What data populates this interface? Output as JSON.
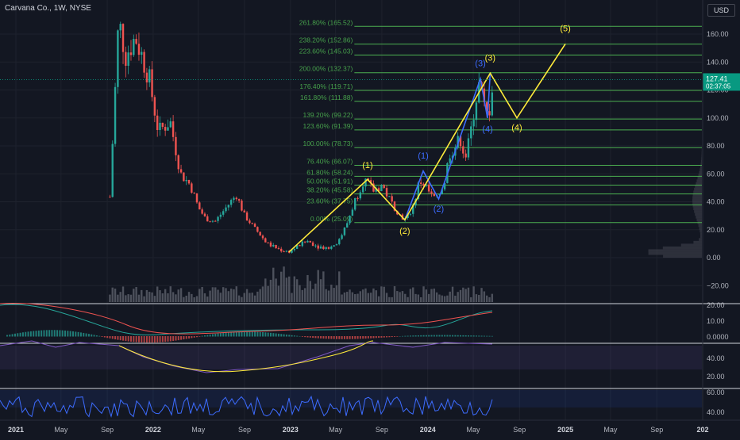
{
  "header": {
    "symbol": "Carvana Co., 1W, NYSE",
    "currency": "USD",
    "last_price": "127.41",
    "countdown": "02:37:05"
  },
  "colors": {
    "background": "#131722",
    "up": "#26a69a",
    "down": "#ef5350",
    "fib": "#4caf50",
    "wave_yellow": "#ffeb3b",
    "wave_blue": "#2962ff",
    "price_tag": "#089981"
  },
  "chart_data": {
    "type": "candlestick",
    "price_axis": {
      "ticks": [
        "160.00",
        "140.00",
        "120.00",
        "100.00",
        "80.00",
        "60.00",
        "40.00",
        "20.00",
        "0.00",
        "−20.00"
      ],
      "range": [
        -30,
        170
      ]
    },
    "time_axis": {
      "ticks": [
        "2021",
        "May",
        "Sep",
        "2022",
        "May",
        "Sep",
        "2023",
        "May",
        "Sep",
        "2024",
        "May",
        "Sep",
        "2025",
        "May",
        "Sep",
        "202"
      ],
      "range": [
        "2021-01-01",
        "2026-01-01"
      ]
    },
    "fib_levels": [
      {
        "label": "261.80% (165.52)",
        "value": 165.52
      },
      {
        "label": "238.20% (152.86)",
        "value": 152.86
      },
      {
        "label": "223.60% (145.03)",
        "value": 145.03
      },
      {
        "label": "200.00% (132.37)",
        "value": 132.37
      },
      {
        "label": "176.40% (119.71)",
        "value": 119.71
      },
      {
        "label": "161.80% (111.88)",
        "value": 111.88
      },
      {
        "label": "139.20% (99.22)",
        "value": 99.22
      },
      {
        "label": "123.60% (91.39)",
        "value": 91.39
      },
      {
        "label": "100.00% (78.73)",
        "value": 78.73
      },
      {
        "label": "76.40% (66.07)",
        "value": 66.07
      },
      {
        "label": "61.80% (58.24)",
        "value": 58.24
      },
      {
        "label": "50.00% (51.91)",
        "value": 51.91
      },
      {
        "label": "38.20% (45.58)",
        "value": 45.58
      },
      {
        "label": "23.60% (37.75)",
        "value": 37.75
      },
      {
        "label": "0.00% (25.09)",
        "value": 25.09
      }
    ],
    "price_series": [
      {
        "t": "2021-09-01",
        "v": 5
      },
      {
        "t": "2021-10-01",
        "v": 170
      },
      {
        "t": "2021-10-20",
        "v": 145
      },
      {
        "t": "2021-11-15",
        "v": 158
      },
      {
        "t": "2021-12-20",
        "v": 130
      },
      {
        "t": "2022-01-15",
        "v": 90
      },
      {
        "t": "2022-02-15",
        "v": 98
      },
      {
        "t": "2022-03-15",
        "v": 60
      },
      {
        "t": "2022-04-10",
        "v": 52
      },
      {
        "t": "2022-05-01",
        "v": 36
      },
      {
        "t": "2022-05-20",
        "v": 28
      },
      {
        "t": "2022-06-15",
        "v": 26
      },
      {
        "t": "2022-07-20",
        "v": 38
      },
      {
        "t": "2022-08-10",
        "v": 45
      },
      {
        "t": "2022-09-01",
        "v": 30
      },
      {
        "t": "2022-10-01",
        "v": 20
      },
      {
        "t": "2022-11-01",
        "v": 10
      },
      {
        "t": "2022-12-01",
        "v": 6
      },
      {
        "t": "2022-12-28",
        "v": 4
      },
      {
        "t": "2023-01-25",
        "v": 9
      },
      {
        "t": "2023-02-15",
        "v": 12
      },
      {
        "t": "2023-03-15",
        "v": 8
      },
      {
        "t": "2023-04-15",
        "v": 7
      },
      {
        "t": "2023-05-10",
        "v": 12
      },
      {
        "t": "2023-06-01",
        "v": 25
      },
      {
        "t": "2023-06-20",
        "v": 40
      },
      {
        "t": "2023-07-15",
        "v": 56
      },
      {
        "t": "2023-08-10",
        "v": 48
      },
      {
        "t": "2023-09-01",
        "v": 52
      },
      {
        "t": "2023-09-25",
        "v": 40
      },
      {
        "t": "2023-10-20",
        "v": 30
      },
      {
        "t": "2023-11-05",
        "v": 27
      },
      {
        "t": "2023-11-25",
        "v": 38
      },
      {
        "t": "2023-12-10",
        "v": 55
      },
      {
        "t": "2023-12-25",
        "v": 52
      },
      {
        "t": "2024-01-10",
        "v": 44
      },
      {
        "t": "2024-01-25",
        "v": 42
      },
      {
        "t": "2024-02-15",
        "v": 55
      },
      {
        "t": "2024-02-28",
        "v": 75
      },
      {
        "t": "2024-03-15",
        "v": 80
      },
      {
        "t": "2024-03-28",
        "v": 85
      },
      {
        "t": "2024-04-10",
        "v": 72
      },
      {
        "t": "2024-04-22",
        "v": 85
      },
      {
        "t": "2024-05-05",
        "v": 110
      },
      {
        "t": "2024-05-18",
        "v": 125
      },
      {
        "t": "2024-05-28",
        "v": 108
      },
      {
        "t": "2024-06-10",
        "v": 100
      },
      {
        "t": "2024-06-22",
        "v": 127.41
      }
    ],
    "wave_count_yellow": {
      "points": [
        {
          "t": "2022-12-28",
          "v": 4
        },
        {
          "t": "2023-07-25",
          "v": 56
        },
        {
          "t": "2023-11-01",
          "v": 27
        },
        {
          "t": "2024-06-15",
          "v": 132
        },
        {
          "t": "2024-08-25",
          "v": 100
        },
        {
          "t": "2025-01-01",
          "v": 153
        }
      ],
      "labels": [
        {
          "t": "2023-07-25",
          "v": 64,
          "text": "(1)"
        },
        {
          "t": "2023-11-01",
          "v": 17,
          "text": "(2)"
        },
        {
          "t": "2024-06-15",
          "v": 141,
          "text": "(3)"
        },
        {
          "t": "2024-08-25",
          "v": 91,
          "text": "(4)"
        },
        {
          "t": "2025-01-01",
          "v": 162,
          "text": "(5)"
        }
      ]
    },
    "wave_count_blue": {
      "points": [
        {
          "t": "2023-11-01",
          "v": 27
        },
        {
          "t": "2023-12-20",
          "v": 62
        },
        {
          "t": "2024-01-30",
          "v": 42
        },
        {
          "t": "2024-05-20",
          "v": 128
        },
        {
          "t": "2024-06-08",
          "v": 100
        },
        {
          "t": "2024-06-15",
          "v": 132
        }
      ],
      "labels": [
        {
          "t": "2023-12-20",
          "v": 71,
          "text": "(1)"
        },
        {
          "t": "2024-01-30",
          "v": 33,
          "text": "(2)"
        },
        {
          "t": "2024-05-20",
          "v": 137,
          "text": "(3)"
        },
        {
          "t": "2024-06-08",
          "v": 90,
          "text": "(4)"
        }
      ]
    },
    "macd_axis": [
      "20.00",
      "10.00",
      "0.0000"
    ],
    "rsi_axis": [
      "40.00",
      "20.00"
    ],
    "osc_axis": [
      "60.00",
      "40.00"
    ]
  }
}
